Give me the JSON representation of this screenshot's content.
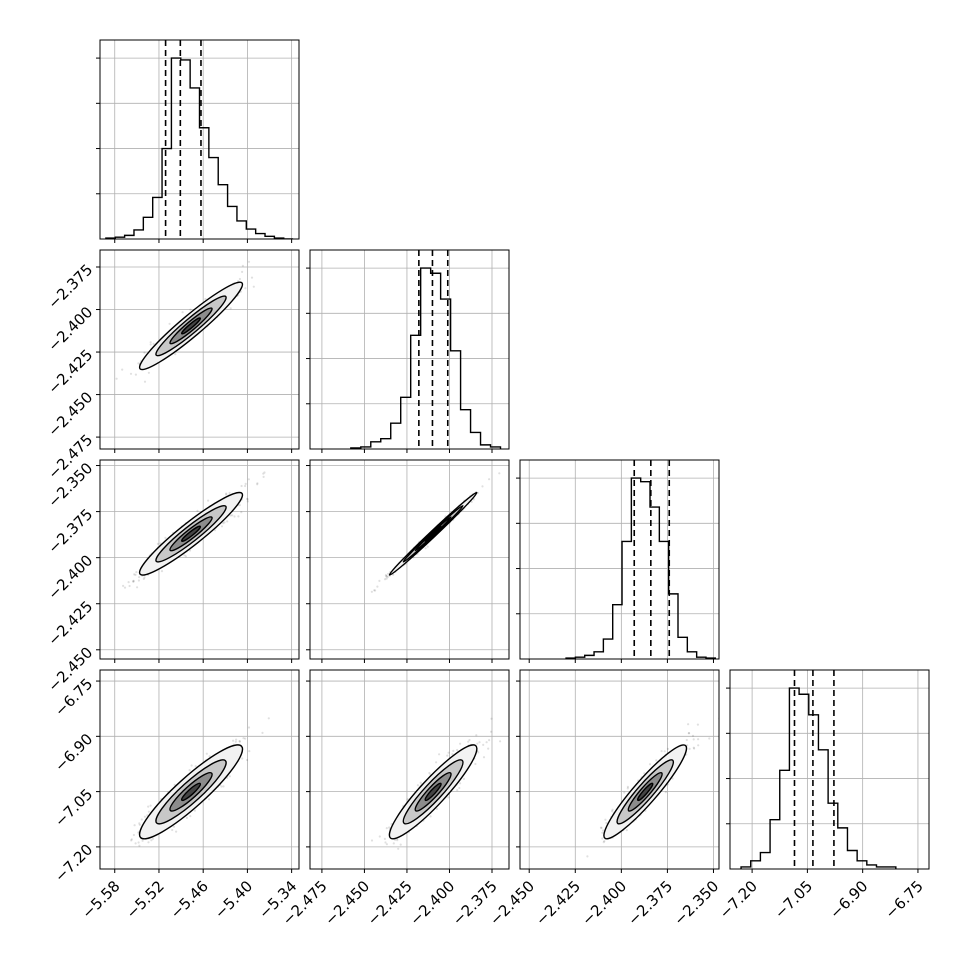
{
  "chart_data": {
    "type": "corner",
    "title": "",
    "grid": true,
    "parameters": [
      {
        "range": [
          -5.6,
          -5.33
        ],
        "ticks": [
          -5.58,
          -5.52,
          -5.46,
          -5.4,
          -5.34
        ],
        "tick_labels": [
          "−5.58",
          "−5.52",
          "−5.46",
          "−5.40",
          "−5.34"
        ],
        "quantiles": [
          -5.511,
          -5.491,
          -5.463
        ],
        "histogram": {
          "range": [
            -5.592,
            -5.338
          ],
          "counts": [
            1,
            2,
            4,
            10,
            24,
            46,
            100,
            200,
            198,
            167,
            123,
            90,
            60,
            36,
            20,
            11,
            6,
            3,
            1,
            0
          ]
        }
      },
      {
        "range": [
          -2.482,
          -2.365
        ],
        "ticks": [
          -2.475,
          -2.45,
          -2.425,
          -2.4,
          -2.375
        ],
        "tick_labels": [
          "−2.475",
          "−2.450",
          "−2.425",
          "−2.400",
          "−2.375"
        ],
        "quantiles": [
          -2.418,
          -2.41,
          -2.401
        ],
        "histogram": {
          "range": [
            -2.458,
            -2.37
          ],
          "counts": [
            1,
            2,
            7,
            10,
            25,
            50,
            110,
            175,
            170,
            145,
            95,
            38,
            16,
            4,
            2
          ]
        }
      },
      {
        "range": [
          -2.455,
          -2.347
        ],
        "ticks": [
          -2.45,
          -2.425,
          -2.4,
          -2.375,
          -2.35
        ],
        "tick_labels": [
          "−2.450",
          "−2.425",
          "−2.400",
          "−2.375",
          "−2.350"
        ],
        "quantiles": [
          -2.393,
          -2.384,
          -2.374
        ],
        "histogram": {
          "range": [
            -2.43,
            -2.349
          ],
          "counts": [
            1,
            2,
            4,
            8,
            22,
            60,
            130,
            200,
            196,
            168,
            130,
            72,
            24,
            8,
            2,
            1
          ]
        }
      },
      {
        "range": [
          -7.26,
          -6.72
        ],
        "ticks": [
          -7.2,
          -7.05,
          -6.9,
          -6.75
        ],
        "tick_labels": [
          "−7.20",
          "−7.05",
          "−6.90",
          "−6.75"
        ],
        "quantiles": [
          -7.085,
          -7.035,
          -6.978
        ],
        "histogram": {
          "range": [
            -7.23,
            -6.81
          ],
          "counts": [
            1,
            4,
            8,
            24,
            48,
            88,
            85,
            75,
            58,
            32,
            20,
            9,
            4,
            2,
            1,
            1
          ]
        }
      }
    ],
    "correlations": [
      [
        1.0,
        0.95,
        0.94,
        0.91
      ],
      [
        0.95,
        1.0,
        0.995,
        0.92
      ],
      [
        0.94,
        0.995,
        1.0,
        0.93
      ],
      [
        0.91,
        0.92,
        0.93,
        1.0
      ]
    ]
  }
}
